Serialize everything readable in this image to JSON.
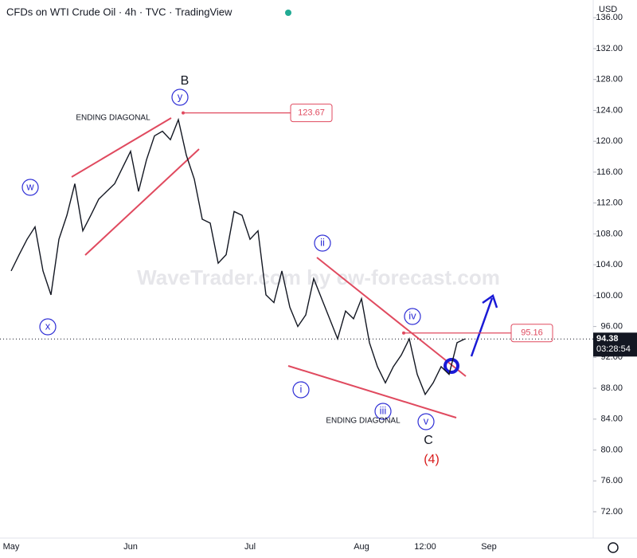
{
  "title": "CFDs on WTI Crude Oil · 4h · TVC · TradingView",
  "watermark": "WaveTrader.com by ew-forecast.com",
  "currency": "USD",
  "countdown": "03:28:54",
  "wave_labels": [
    "w",
    "x",
    "y",
    "ii",
    "iv",
    "i",
    "iii",
    "v"
  ],
  "major_labels": [
    "B",
    "C",
    "(4)"
  ],
  "pattern_labels": [
    "ENDING DIAGONAL",
    "ENDING DIAGONAL"
  ],
  "chart_data": {
    "type": "line",
    "color": "#131722",
    "grid": false,
    "categories": [
      "May",
      null,
      null,
      null,
      null,
      null,
      null,
      null,
      null,
      null,
      null,
      null,
      null,
      null,
      null,
      "Jun",
      null,
      null,
      null,
      null,
      null,
      null,
      null,
      null,
      null,
      null,
      null,
      null,
      null,
      null,
      "Jul",
      null,
      null,
      null,
      null,
      null,
      null,
      null,
      null,
      null,
      null,
      null,
      null,
      null,
      "Aug",
      null,
      null,
      null,
      null,
      null,
      null,
      null,
      "12:00",
      null,
      null,
      null,
      null,
      null,
      null,
      null,
      "Sep"
    ],
    "values": [
      103.2,
      105.3,
      107.3,
      108.9,
      103.2,
      100.1,
      107.3,
      110.4,
      114.5,
      108.4,
      110.4,
      112.5,
      113.5,
      114.5,
      116.6,
      118.7,
      113.5,
      117.6,
      120.7,
      121.3,
      120.2,
      122.8,
      118.2,
      115.1,
      109.9,
      109.4,
      104.2,
      105.3,
      110.9,
      110.4,
      107.3,
      108.4,
      100.1,
      99.1,
      103.2,
      98.5,
      96.0,
      97.5,
      102.2,
      99.6,
      97.0,
      94.4,
      98.0,
      97.0,
      99.6,
      93.9,
      90.8,
      88.7,
      90.8,
      92.3,
      94.4,
      89.8,
      87.2,
      88.7,
      90.8,
      89.8,
      93.9,
      94.4,
      null,
      null,
      null
    ],
    "ylim": [
      68.9,
      138.3
    ],
    "yticks": [
      {
        "value": 72,
        "label": "72.00"
      },
      {
        "value": 76,
        "label": "76.00"
      },
      {
        "value": 80,
        "label": "80.00"
      },
      {
        "value": 84,
        "label": "84.00"
      },
      {
        "value": 88,
        "label": "88.00"
      },
      {
        "value": 92,
        "label": "92.00"
      },
      {
        "value": 96,
        "label": "96.00"
      },
      {
        "value": 100,
        "label": "100.00"
      },
      {
        "value": 104,
        "label": "104.00"
      },
      {
        "value": 108,
        "label": "108.00"
      },
      {
        "value": 112,
        "label": "112.00"
      },
      {
        "value": 116,
        "label": "116.00"
      },
      {
        "value": 120,
        "label": "120.00"
      },
      {
        "value": 124,
        "label": "124.00"
      },
      {
        "value": 128,
        "label": "128.00"
      },
      {
        "value": 132,
        "label": "132.00"
      },
      {
        "value": 136,
        "label": "136.00"
      }
    ],
    "levels": [
      123.67,
      95.16
    ],
    "last_price": 94.38
  }
}
